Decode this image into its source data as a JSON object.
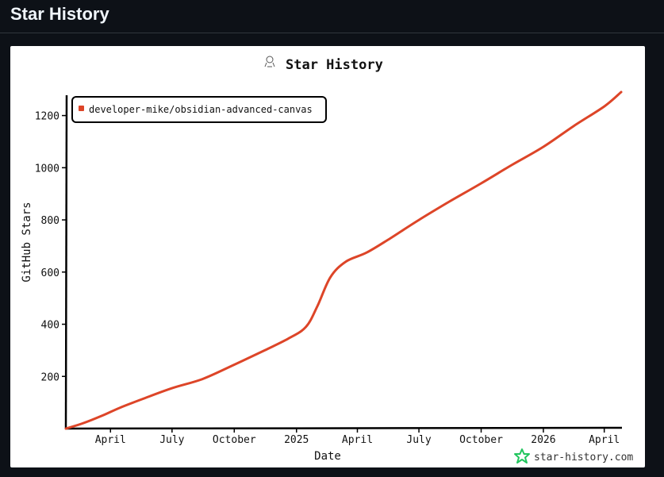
{
  "page": {
    "title": "Star History"
  },
  "chart_data": {
    "type": "line",
    "title": "Star History",
    "xlabel": "Date",
    "ylabel": "GitHub Stars",
    "x_ticks": [
      "April",
      "July",
      "October",
      "2025",
      "April",
      "July",
      "October",
      "2026",
      "April"
    ],
    "y_ticks": [
      200,
      400,
      600,
      800,
      1000,
      1200
    ],
    "ylim": [
      0,
      1290
    ],
    "xlim": [
      "2024-01-26",
      "2026-04-26"
    ],
    "grid": false,
    "legend_position": "top-left",
    "series": [
      {
        "name": "developer-mike/obsidian-advanced-canvas",
        "color": "#dd4528",
        "points": [
          [
            "2024-01-26",
            0
          ],
          [
            "2024-02-20",
            20
          ],
          [
            "2024-03-20",
            50
          ],
          [
            "2024-04-15",
            80
          ],
          [
            "2024-05-20",
            115
          ],
          [
            "2024-07-01",
            155
          ],
          [
            "2024-08-15",
            190
          ],
          [
            "2024-10-01",
            245
          ],
          [
            "2024-11-15",
            300
          ],
          [
            "2024-12-20",
            345
          ],
          [
            "2025-01-15",
            390
          ],
          [
            "2025-02-01",
            470
          ],
          [
            "2025-02-20",
            580
          ],
          [
            "2025-03-15",
            640
          ],
          [
            "2025-04-15",
            675
          ],
          [
            "2025-05-20",
            730
          ],
          [
            "2025-07-01",
            800
          ],
          [
            "2025-08-15",
            870
          ],
          [
            "2025-10-01",
            940
          ],
          [
            "2025-11-15",
            1010
          ],
          [
            "2026-01-01",
            1080
          ],
          [
            "2026-02-15",
            1160
          ],
          [
            "2026-04-01",
            1235
          ],
          [
            "2026-04-26",
            1290
          ]
        ]
      }
    ]
  },
  "watermark": {
    "text": "star-history.com"
  }
}
